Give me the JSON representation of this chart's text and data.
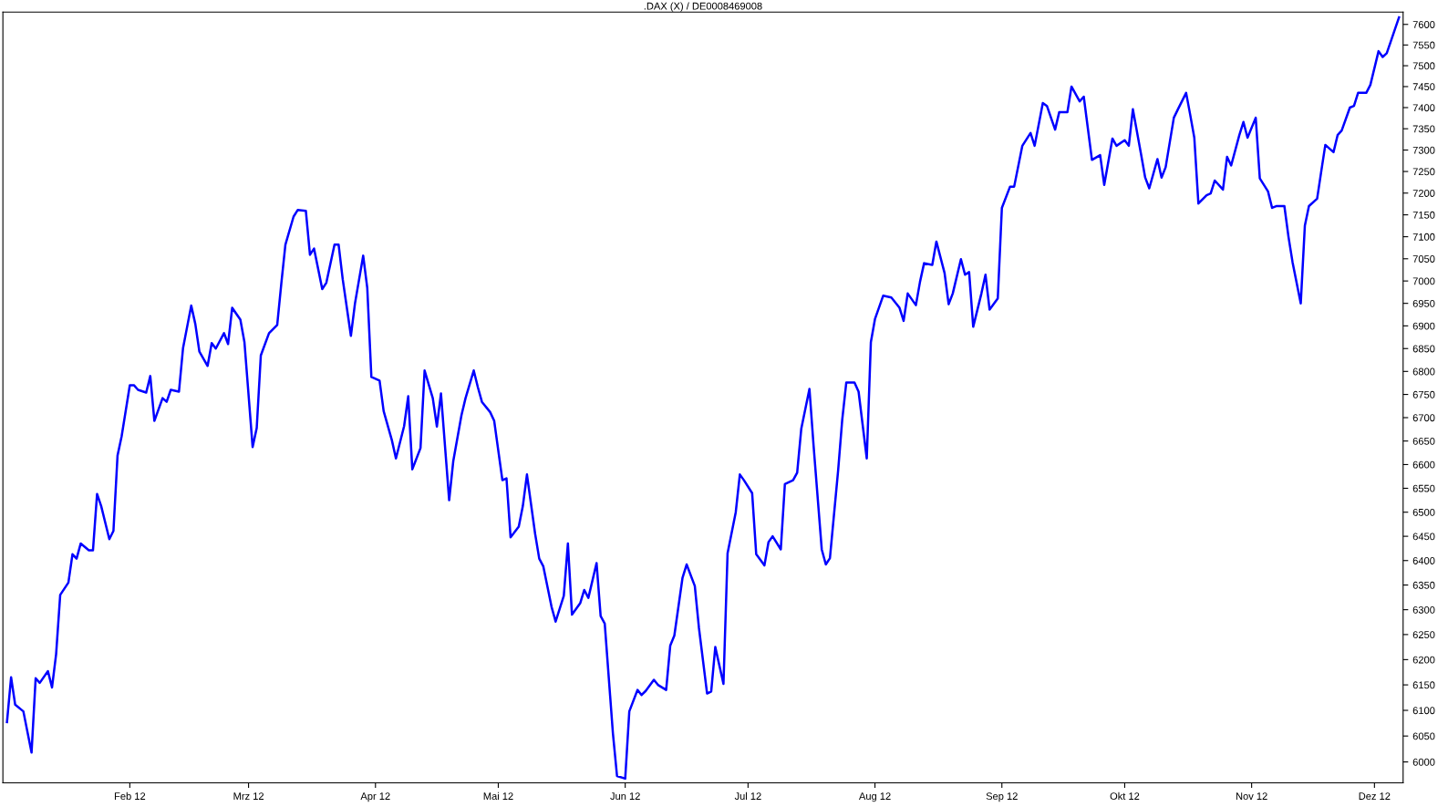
{
  "chart_data": {
    "type": "line",
    "title": ".DAX (X) / DE0008469008",
    "x": [
      "2012-01-02",
      "2012-01-03",
      "2012-01-04",
      "2012-01-06",
      "2012-01-08",
      "2012-01-09",
      "2012-01-10",
      "2012-01-12",
      "2012-01-13",
      "2012-01-14",
      "2012-01-15",
      "2012-01-17",
      "2012-01-18",
      "2012-01-19",
      "2012-01-20",
      "2012-01-22",
      "2012-01-23",
      "2012-01-24",
      "2012-01-25",
      "2012-01-27",
      "2012-01-28",
      "2012-01-29",
      "2012-01-30",
      "2012-02-01",
      "2012-02-02",
      "2012-02-03",
      "2012-02-05",
      "2012-02-06",
      "2012-02-07",
      "2012-02-09",
      "2012-02-10",
      "2012-02-11",
      "2012-02-13",
      "2012-02-14",
      "2012-02-16",
      "2012-02-17",
      "2012-02-18",
      "2012-02-20",
      "2012-02-21",
      "2012-02-22",
      "2012-02-24",
      "2012-02-25",
      "2012-02-26",
      "2012-02-28",
      "2012-02-29",
      "2012-03-02",
      "2012-03-03",
      "2012-03-04",
      "2012-03-06",
      "2012-03-08",
      "2012-03-09",
      "2012-03-10",
      "2012-03-12",
      "2012-03-13",
      "2012-03-15",
      "2012-03-16",
      "2012-03-17",
      "2012-03-19",
      "2012-03-20",
      "2012-03-22",
      "2012-03-23",
      "2012-03-24",
      "2012-03-26",
      "2012-03-27",
      "2012-03-29",
      "2012-03-30",
      "2012-03-31",
      "2012-04-02",
      "2012-04-03",
      "2012-04-05",
      "2012-04-06",
      "2012-04-08",
      "2012-04-09",
      "2012-04-10",
      "2012-04-12",
      "2012-04-13",
      "2012-04-15",
      "2012-04-16",
      "2012-04-17",
      "2012-04-19",
      "2012-04-20",
      "2012-04-22",
      "2012-04-23",
      "2012-04-25",
      "2012-04-26",
      "2012-04-27",
      "2012-04-29",
      "2012-04-30",
      "2012-05-02",
      "2012-05-03",
      "2012-05-04",
      "2012-05-06",
      "2012-05-07",
      "2012-05-08",
      "2012-05-10",
      "2012-05-11",
      "2012-05-12",
      "2012-05-14",
      "2012-05-15",
      "2012-05-17",
      "2012-05-18",
      "2012-05-19",
      "2012-05-21",
      "2012-05-22",
      "2012-05-23",
      "2012-05-25",
      "2012-05-26",
      "2012-05-27",
      "2012-05-29",
      "2012-05-30",
      "2012-06-01",
      "2012-06-02",
      "2012-06-04",
      "2012-06-05",
      "2012-06-06",
      "2012-06-08",
      "2012-06-09",
      "2012-06-11",
      "2012-06-12",
      "2012-06-13",
      "2012-06-15",
      "2012-06-16",
      "2012-06-18",
      "2012-06-19",
      "2012-06-21",
      "2012-06-22",
      "2012-06-23",
      "2012-06-25",
      "2012-06-26",
      "2012-06-28",
      "2012-06-29",
      "2012-06-30",
      "2012-07-02",
      "2012-07-03",
      "2012-07-05",
      "2012-07-06",
      "2012-07-07",
      "2012-07-09",
      "2012-07-10",
      "2012-07-12",
      "2012-07-13",
      "2012-07-14",
      "2012-07-16",
      "2012-07-17",
      "2012-07-19",
      "2012-07-20",
      "2012-07-21",
      "2012-07-23",
      "2012-07-24",
      "2012-07-25",
      "2012-07-27",
      "2012-07-28",
      "2012-07-30",
      "2012-07-31",
      "2012-08-01",
      "2012-08-03",
      "2012-08-04",
      "2012-08-05",
      "2012-08-07",
      "2012-08-08",
      "2012-08-09",
      "2012-08-11",
      "2012-08-12",
      "2012-08-13",
      "2012-08-15",
      "2012-08-16",
      "2012-08-18",
      "2012-08-19",
      "2012-08-20",
      "2012-08-22",
      "2012-08-23",
      "2012-08-24",
      "2012-08-25",
      "2012-08-27",
      "2012-08-28",
      "2012-08-29",
      "2012-08-31",
      "2012-09-01",
      "2012-09-03",
      "2012-09-04",
      "2012-09-06",
      "2012-09-08",
      "2012-09-09",
      "2012-09-11",
      "2012-09-12",
      "2012-09-14",
      "2012-09-15",
      "2012-09-17",
      "2012-09-18",
      "2012-09-20",
      "2012-09-21",
      "2012-09-23",
      "2012-09-25",
      "2012-09-26",
      "2012-09-28",
      "2012-09-29",
      "2012-10-01",
      "2012-10-02",
      "2012-10-03",
      "2012-10-05",
      "2012-10-06",
      "2012-10-07",
      "2012-10-09",
      "2012-10-10",
      "2012-10-11",
      "2012-10-13",
      "2012-10-14",
      "2012-10-16",
      "2012-10-17",
      "2012-10-18",
      "2012-10-19",
      "2012-10-21",
      "2012-10-22",
      "2012-10-23",
      "2012-10-25",
      "2012-10-26",
      "2012-10-27",
      "2012-10-29",
      "2012-10-30",
      "2012-10-31",
      "2012-11-02",
      "2012-11-03",
      "2012-11-05",
      "2012-11-06",
      "2012-11-07",
      "2012-11-09",
      "2012-11-10",
      "2012-11-11",
      "2012-11-13",
      "2012-11-14",
      "2012-11-15",
      "2012-11-17",
      "2012-11-18",
      "2012-11-19",
      "2012-11-21",
      "2012-11-22",
      "2012-11-23",
      "2012-11-25",
      "2012-11-26",
      "2012-11-27",
      "2012-11-29",
      "2012-11-30",
      "2012-12-02",
      "2012-12-03",
      "2012-12-04",
      "2012-12-06",
      "2012-12-07"
    ],
    "series": [
      {
        "color": "#0000ff",
        "values": [
          6077,
          6165,
          6111,
          6098,
          6018,
          6163,
          6154,
          6177,
          6145,
          6211,
          6330,
          6355,
          6413,
          6404,
          6435,
          6421,
          6421,
          6538,
          6513,
          6444,
          6461,
          6619,
          6660,
          6770,
          6770,
          6760,
          6754,
          6790,
          6693,
          6742,
          6734,
          6760,
          6756,
          6851,
          6945,
          6904,
          6843,
          6812,
          6862,
          6850,
          6884,
          6860,
          6940,
          6914,
          6864,
          6637,
          6678,
          6835,
          6884,
          6902,
          6994,
          7082,
          7146,
          7161,
          7159,
          7059,
          7073,
          6982,
          6996,
          7082,
          7082,
          7004,
          6878,
          6950,
          7057,
          6984,
          6788,
          6780,
          6714,
          6652,
          6613,
          6682,
          6746,
          6590,
          6635,
          6802,
          6742,
          6681,
          6752,
          6525,
          6607,
          6705,
          6742,
          6802,
          6766,
          6734,
          6712,
          6693,
          6567,
          6571,
          6448,
          6470,
          6513,
          6579,
          6455,
          6404,
          6388,
          6306,
          6276,
          6328,
          6435,
          6290,
          6313,
          6340,
          6324,
          6395,
          6287,
          6272,
          6055,
          5973,
          5968,
          6098,
          6140,
          6130,
          6138,
          6160,
          6150,
          6140,
          6228,
          6248,
          6365,
          6392,
          6348,
          6264,
          6133,
          6137,
          6225,
          6152,
          6415,
          6500,
          6579,
          6567,
          6540,
          6413,
          6390,
          6438,
          6450,
          6423,
          6559,
          6567,
          6583,
          6676,
          6762,
          6641,
          6423,
          6392,
          6405,
          6587,
          6695,
          6776,
          6776,
          6756,
          6613,
          6864,
          6915,
          6967,
          6965,
          6963,
          6940,
          6911,
          6972,
          6946,
          6998,
          7040,
          7036,
          7089,
          7018,
          6948,
          6972,
          7049,
          7014,
          7020,
          6898,
          6972,
          7014,
          6936,
          6961,
          7166,
          7215,
          7215,
          7310,
          7340,
          7310,
          7411,
          7404,
          7348,
          7389,
          7389,
          7450,
          7415,
          7426,
          7277,
          7288,
          7219,
          7327,
          7310,
          7323,
          7310,
          7396,
          7290,
          7236,
          7211,
          7279,
          7236,
          7260,
          7376,
          7396,
          7435,
          7383,
          7329,
          7176,
          7195,
          7199,
          7229,
          7208,
          7284,
          7264,
          7335,
          7366,
          7329,
          7376,
          7234,
          7204,
          7166,
          7170,
          7170,
          7100,
          7042,
          6950,
          7125,
          7170,
          7187,
          7250,
          7312,
          7295,
          7335,
          7346,
          7400,
          7404,
          7435,
          7435,
          7454,
          7535,
          7521,
          7530,
          7588,
          7617
        ]
      }
    ],
    "log": true,
    "xlim": [
      "2012-01-01",
      "2012-12-08"
    ],
    "xticks": [
      {
        "value": "2012-02-01",
        "label": "Feb 12"
      },
      {
        "value": "2012-03-01",
        "label": "Mrz 12"
      },
      {
        "value": "2012-04-01",
        "label": "Apr 12"
      },
      {
        "value": "2012-05-01",
        "label": "Mai 12"
      },
      {
        "value": "2012-06-01",
        "label": "Jun 12"
      },
      {
        "value": "2012-07-01",
        "label": "Jul 12"
      },
      {
        "value": "2012-08-01",
        "label": "Aug 12"
      },
      {
        "value": "2012-09-01",
        "label": "Sep 12"
      },
      {
        "value": "2012-10-01",
        "label": "Okt 12"
      },
      {
        "value": "2012-11-01",
        "label": "Nov 12"
      },
      {
        "value": "2012-12-01",
        "label": "Dez 12"
      }
    ],
    "ylim": [
      5960,
      7630
    ],
    "yticks": [
      6000,
      6050,
      6100,
      6150,
      6200,
      6250,
      6300,
      6350,
      6400,
      6450,
      6500,
      6550,
      6600,
      6650,
      6700,
      6750,
      6800,
      6850,
      6900,
      6950,
      7000,
      7050,
      7100,
      7150,
      7200,
      7250,
      7300,
      7350,
      7400,
      7450,
      7500,
      7550,
      7600
    ],
    "grid": false,
    "marker": "none",
    "line_style": "solid"
  }
}
